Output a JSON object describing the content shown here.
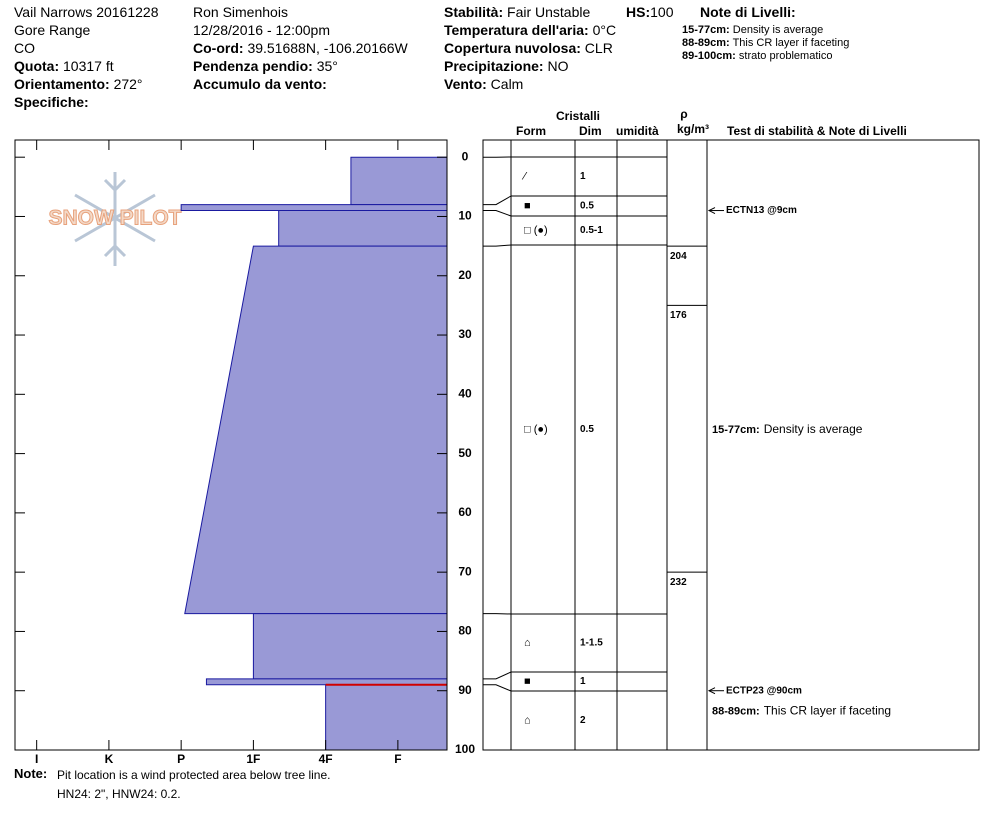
{
  "header": {
    "location": [
      "Vail Narrows 20161228",
      "Gore Range",
      "CO"
    ],
    "elevation": {
      "label": "Quota:",
      "value": "10317 ft"
    },
    "aspect": {
      "label": "Orientamento:",
      "value": "272°"
    },
    "specifics": {
      "label": "Specifiche:"
    },
    "observer": "Ron Simenhois",
    "datetime": "12/28/2016 - 12:00pm",
    "coords": {
      "label": "Co-ord:",
      "value": "39.51688N, -106.20166W"
    },
    "slope": {
      "label": "Pendenza pendio:",
      "value": "35°"
    },
    "wind_loading": {
      "label": "Accumulo da vento:"
    },
    "stability": {
      "label": "Stabilità:",
      "value": "Fair Unstable"
    },
    "hs": {
      "label": "HS:",
      "value": "100"
    },
    "air_temp": {
      "label": "Temperatura dell'aria:",
      "value": "0°C"
    },
    "sky": {
      "label": "Copertura nuvolosa:",
      "value": "CLR"
    },
    "precip": {
      "label": "Precipitazione:",
      "value": "NO"
    },
    "wind": {
      "label": "Vento:",
      "value": "Calm"
    },
    "layer_notes_title": "Note di Livelli:",
    "layer_notes": [
      {
        "range": "15-77cm:",
        "text": "Density is average"
      },
      {
        "range": "88-89cm:",
        "text": "This CR layer if faceting"
      },
      {
        "range": "89-100cm:",
        "text": "strato problematico"
      }
    ]
  },
  "logo": "SNOW PILOT",
  "columns": {
    "crystals": "Cristalli",
    "form": "Form",
    "size": "Dim",
    "moisture": "umidità",
    "rho": "ρ",
    "density_unit": "kg/m³",
    "tests": "Test di stabilità & Note di Livelli"
  },
  "profile": {
    "ylim": [
      -2.9,
      100
    ],
    "depth_ticks": [
      0,
      10,
      20,
      30,
      40,
      50,
      60,
      70,
      80,
      90,
      100
    ],
    "xlim": [
      0.32,
      6.3
    ],
    "hardness_ticks": [
      {
        "value": 6,
        "label": "I"
      },
      {
        "value": 5,
        "label": "K"
      },
      {
        "value": 4,
        "label": "P"
      },
      {
        "value": 3,
        "label": "1F"
      },
      {
        "value": 2,
        "label": "4F"
      },
      {
        "value": 1,
        "label": "F"
      }
    ],
    "layers": [
      {
        "top": 0,
        "bottom": 8,
        "hardness_top": 1.65,
        "hardness_bottom": 1.65
      },
      {
        "top": 8,
        "bottom": 9,
        "hardness_top": 4,
        "hardness_bottom": 4
      },
      {
        "top": 9,
        "bottom": 15,
        "hardness_top": 2.65,
        "hardness_bottom": 2.65
      },
      {
        "top": 15,
        "bottom": 77,
        "hardness_top": 3,
        "hardness_bottom": 3.95
      },
      {
        "top": 77,
        "bottom": 88,
        "hardness_top": 3,
        "hardness_bottom": 3
      },
      {
        "top": 88,
        "bottom": 89,
        "hardness_top": 3.65,
        "hardness_bottom": 3.65
      },
      {
        "top": 89,
        "bottom": 100,
        "hardness_top": 2,
        "hardness_bottom": 2
      }
    ],
    "critical_depth": 89
  },
  "crystal_rows": [
    {
      "form": "⁄",
      "size": "1"
    },
    {
      "form": "■",
      "size": "0.5"
    },
    {
      "form": "□ (●)",
      "size": "0.5-1"
    },
    {
      "form": "□ (●)",
      "size": "0.5"
    },
    {
      "form": "⌂",
      "size": "1-1.5"
    },
    {
      "form": "■",
      "size": "1"
    },
    {
      "form": "⌂",
      "size": "2"
    }
  ],
  "density": [
    {
      "depth": 15,
      "value": 204
    },
    {
      "depth": 25,
      "value": 176
    },
    {
      "depth": 70,
      "value": 232
    }
  ],
  "tests": [
    {
      "depth": 9,
      "text": "ECTN13 @9cm"
    },
    {
      "depth": 90,
      "text": "ECTP23 @90cm"
    }
  ],
  "notes_in_chart": [
    {
      "depth": 46,
      "range": "15-77cm:",
      "text": "Density is average"
    },
    {
      "depth": 93.5,
      "range": "88-89cm:",
      "text": "This CR layer if faceting"
    }
  ],
  "footer": {
    "label": "Note:",
    "lines": [
      "Pit location is a wind protected area below tree line.",
      "HN24: 2\", HNW24: 0.2."
    ]
  }
}
